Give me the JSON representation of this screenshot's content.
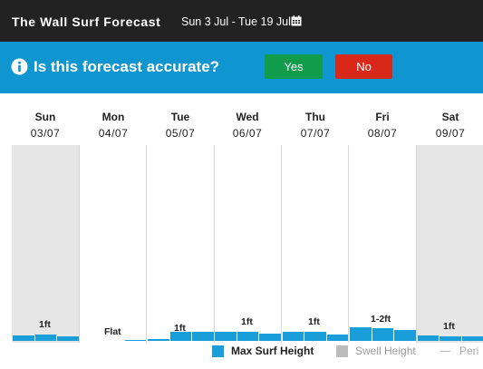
{
  "header": {
    "title": "The Wall Surf Forecast",
    "date_range": "Sun 3 Jul - Tue 19 Jul"
  },
  "feedback": {
    "question": "Is this forecast accurate?",
    "yes_label": "Yes",
    "no_label": "No"
  },
  "days": [
    {
      "name": "Sun",
      "date": "03/07"
    },
    {
      "name": "Mon",
      "date": "04/07"
    },
    {
      "name": "Tue",
      "date": "05/07"
    },
    {
      "name": "Wed",
      "date": "06/07"
    },
    {
      "name": "Thu",
      "date": "07/07"
    },
    {
      "name": "Fri",
      "date": "08/07"
    },
    {
      "name": "Sat",
      "date": "09/07"
    }
  ],
  "height_labels": [
    "1ft",
    "Flat",
    "1ft",
    "1ft",
    "1ft",
    "1-2ft",
    "1ft"
  ],
  "legend": {
    "max_surf": "Max Surf Height",
    "swell": "Swell Height",
    "period": "Peri"
  },
  "colors": {
    "surf_bar": "#1a9ed9",
    "swell": "#bcbcbc",
    "banner": "#0f96d1",
    "yes": "#109c4b",
    "no": "#d8281a"
  },
  "chart_data": {
    "type": "bar",
    "categories": [
      "Sun 03/07",
      "Mon 04/07",
      "Tue 05/07",
      "Wed 06/07",
      "Thu 07/07",
      "Fri 08/07",
      "Sat 09/07"
    ],
    "series": [
      {
        "name": "Max Surf Height",
        "values": [
          [
            0.5,
            0.6,
            0.45
          ],
          [
            0,
            0,
            0.1
          ],
          [
            0.15,
            0.8,
            0.8
          ],
          [
            0.8,
            0.8,
            0.7
          ],
          [
            0.8,
            0.8,
            0.6
          ],
          [
            1.25,
            1.2,
            1.0
          ],
          [
            0.5,
            0.4,
            0.4
          ]
        ]
      }
    ],
    "ylabel": "",
    "ylim": [
      0,
      5
    ]
  }
}
